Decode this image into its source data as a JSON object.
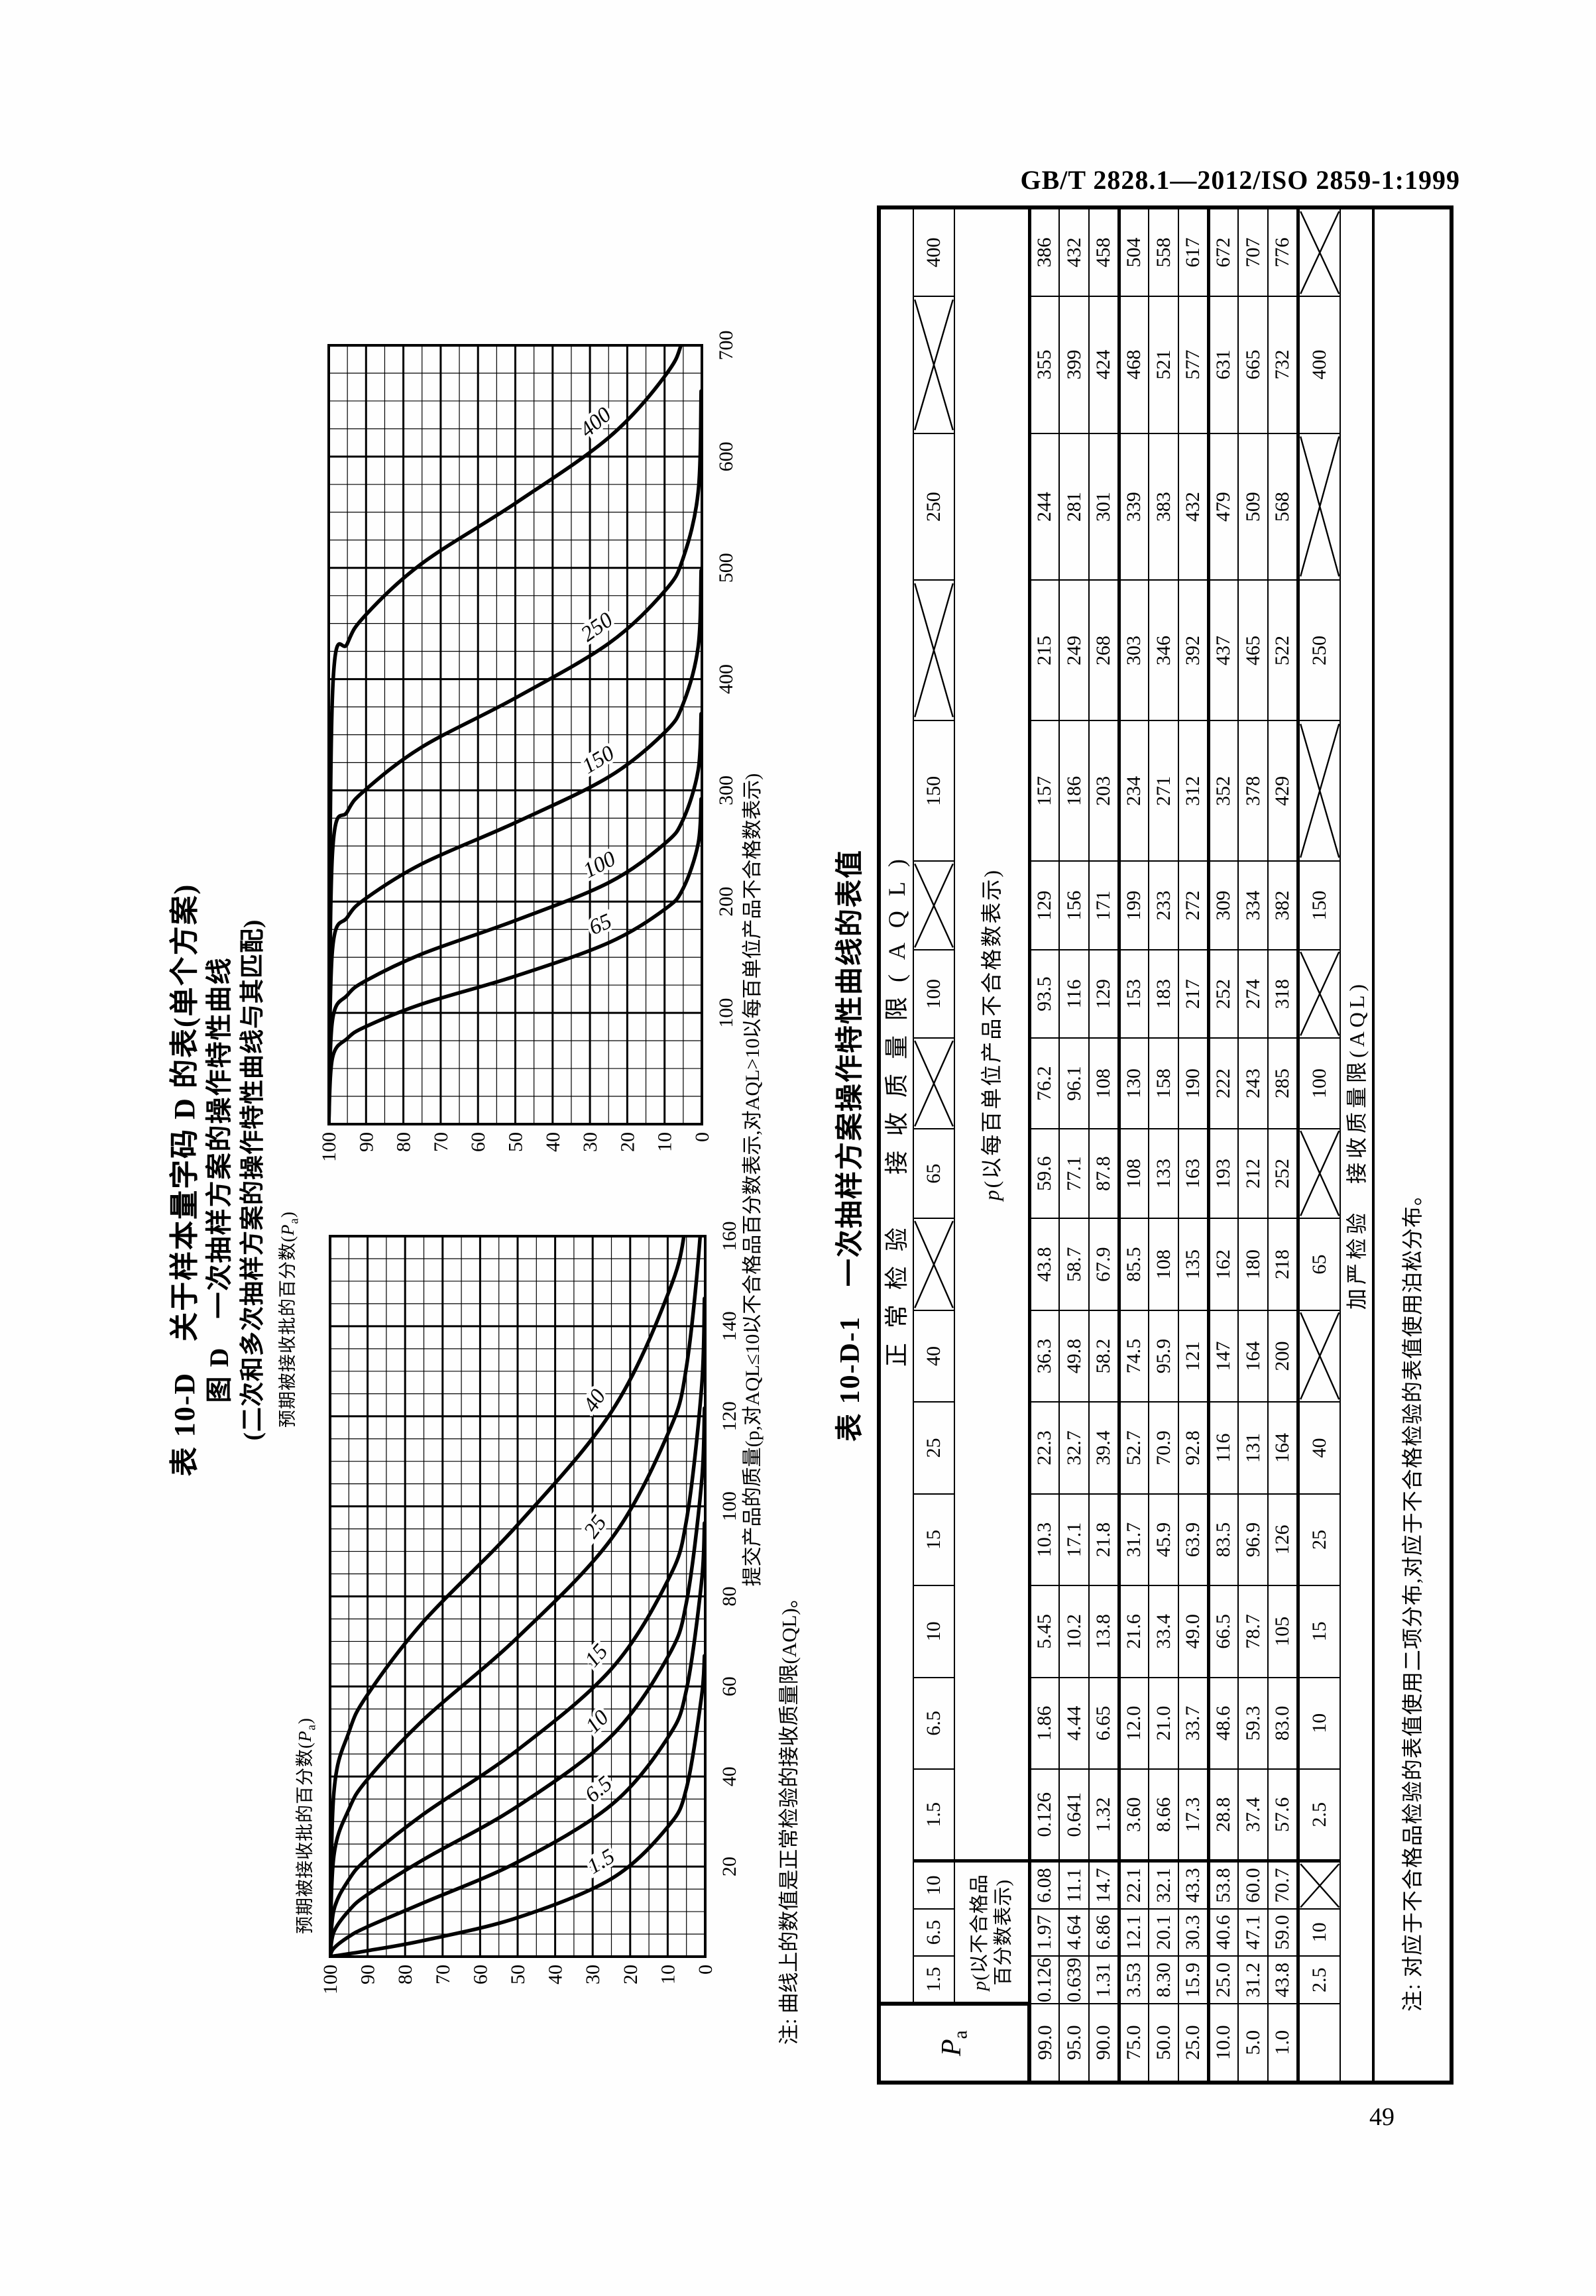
{
  "page": {
    "header": "GB/T 2828.1—2012/ISO 2859-1:1999",
    "page_number": "49"
  },
  "figure": {
    "title1": "表 10-D　关于样本量字码 D 的表(单个方案)",
    "title2": "图 D　一次抽样方案的操作特性曲线",
    "title3": "(二次和多次抽样方案的操作特性曲线与其匹配)",
    "y_axis_label_prefix": "预期被接收批的百分数(",
    "y_axis_symbol": "P",
    "y_axis_sub": "a",
    "y_axis_label_suffix": ")",
    "x_axis_caption": "提交产品的质量(p,对AQL≤10以不合格品百分数表示,对AQL>10以每百单位产品不合格数表示)",
    "note": "注: 曲线上的数值是正常检验的接收质量限(AQL)。"
  },
  "chart_data": [
    {
      "type": "line",
      "title": "OC curves, normal inspection AQL 65-400 (nonconformities per hundred units)",
      "xlabel": "提交产品的质量",
      "ylabel": "预期被接收批的百分数(Pa)",
      "xlim": [
        0,
        700
      ],
      "ylim": [
        0,
        100
      ],
      "xticks": [
        100,
        200,
        300,
        400,
        500,
        600,
        700
      ],
      "yticks": [
        100,
        90,
        80,
        70,
        60,
        50,
        40,
        30,
        20,
        10,
        0
      ],
      "x_minor_step": 25,
      "y_minor_step": 5,
      "grid": true,
      "legend_position": "on-curve",
      "pa_levels": [
        99,
        95,
        90,
        75,
        50,
        25,
        10,
        5,
        1
      ],
      "series": [
        {
          "name": "65",
          "values": [
            59.6,
            77.1,
            87.8,
            108,
            133,
            163,
            193,
            212,
            252
          ]
        },
        {
          "name": "100",
          "values": [
            93.5,
            116,
            129,
            153,
            183,
            217,
            252,
            274,
            318
          ]
        },
        {
          "name": "150",
          "values": [
            157,
            186,
            203,
            234,
            271,
            312,
            352,
            378,
            429
          ]
        },
        {
          "name": "250",
          "values": [
            244,
            281,
            301,
            339,
            383,
            432,
            479,
            509,
            568
          ]
        },
        {
          "name": "400",
          "values": [
            386,
            432,
            458,
            504,
            558,
            617,
            672,
            707,
            776
          ]
        }
      ]
    },
    {
      "type": "line",
      "title": "OC curves, normal inspection AQL 1.5-40",
      "xlabel": "提交产品的质量",
      "ylabel": "预期被接收批的百分数(Pa)",
      "xlim": [
        0,
        160
      ],
      "ylim": [
        0,
        100
      ],
      "xticks": [
        20,
        40,
        60,
        80,
        100,
        120,
        140,
        160
      ],
      "yticks": [
        100,
        90,
        80,
        70,
        60,
        50,
        40,
        30,
        20,
        10,
        0
      ],
      "x_minor_step": 5,
      "y_minor_step": 5,
      "grid": true,
      "legend_position": "on-curve",
      "pa_levels": [
        99,
        95,
        90,
        75,
        50,
        25,
        10,
        5,
        1
      ],
      "series": [
        {
          "name": "1.5",
          "values": [
            0.126,
            0.641,
            1.32,
            3.6,
            8.66,
            17.3,
            28.8,
            37.4,
            57.6
          ]
        },
        {
          "name": "6.5",
          "values": [
            1.86,
            4.44,
            6.65,
            12.0,
            21.0,
            33.7,
            48.6,
            59.3,
            83.0
          ]
        },
        {
          "name": "10",
          "values": [
            5.45,
            10.2,
            13.8,
            21.6,
            33.4,
            49.0,
            66.5,
            78.7,
            105
          ]
        },
        {
          "name": "15",
          "values": [
            10.3,
            17.1,
            21.8,
            31.7,
            45.9,
            63.9,
            83.5,
            96.9,
            126
          ]
        },
        {
          "name": "25",
          "values": [
            22.3,
            32.7,
            39.4,
            52.7,
            70.9,
            92.8,
            116,
            131,
            164
          ]
        },
        {
          "name": "40",
          "values": [
            36.3,
            49.8,
            58.2,
            74.5,
            95.9,
            121,
            147,
            164,
            200
          ]
        }
      ]
    }
  ],
  "table": {
    "title": "表 10-D-1　一次抽样方案操作特性曲线的表值",
    "header_row1": "正常检验　接收质量限(AQL)",
    "pa_symbol": "P",
    "pa_sub": "a",
    "group1_label_line1": "p(以不合格品",
    "group1_label_line2": "百分数表示)",
    "group2_label": "p(以每百单位产品不合格数表示)",
    "aql_g1": [
      "1.5",
      "6.5",
      "10"
    ],
    "aql_g2": [
      "1.5",
      "6.5",
      "10",
      "15",
      "25",
      "40",
      "",
      "65",
      "",
      "100",
      "",
      "150",
      "",
      "250",
      "",
      "400"
    ],
    "rows": [
      {
        "pa": "99.0",
        "g1": [
          "0.126",
          "1.97",
          "6.08"
        ],
        "g2": [
          "0.126",
          "1.86",
          "5.45",
          "10.3",
          "22.3",
          "36.3",
          "43.8",
          "59.6",
          "76.2",
          "93.5",
          "129",
          "157",
          "215",
          "244",
          "355",
          "386"
        ]
      },
      {
        "pa": "95.0",
        "g1": [
          "0.639",
          "4.64",
          "11.1"
        ],
        "g2": [
          "0.641",
          "4.44",
          "10.2",
          "17.1",
          "32.7",
          "49.8",
          "58.7",
          "77.1",
          "96.1",
          "116",
          "156",
          "186",
          "249",
          "281",
          "399",
          "432"
        ]
      },
      {
        "pa": "90.0",
        "g1": [
          "1.31",
          "6.86",
          "14.7"
        ],
        "g2": [
          "1.32",
          "6.65",
          "13.8",
          "21.8",
          "39.4",
          "58.2",
          "67.9",
          "87.8",
          "108",
          "129",
          "171",
          "203",
          "268",
          "301",
          "424",
          "458"
        ]
      },
      {
        "pa": "75.0",
        "g1": [
          "3.53",
          "12.1",
          "22.1"
        ],
        "g2": [
          "3.60",
          "12.0",
          "21.6",
          "31.7",
          "52.7",
          "74.5",
          "85.5",
          "108",
          "130",
          "153",
          "199",
          "234",
          "303",
          "339",
          "468",
          "504"
        ]
      },
      {
        "pa": "50.0",
        "g1": [
          "8.30",
          "20.1",
          "32.1"
        ],
        "g2": [
          "8.66",
          "21.0",
          "33.4",
          "45.9",
          "70.9",
          "95.9",
          "108",
          "133",
          "158",
          "183",
          "233",
          "271",
          "346",
          "383",
          "521",
          "558"
        ]
      },
      {
        "pa": "25.0",
        "g1": [
          "15.9",
          "30.3",
          "43.3"
        ],
        "g2": [
          "17.3",
          "33.7",
          "49.0",
          "63.9",
          "92.8",
          "121",
          "135",
          "163",
          "190",
          "217",
          "272",
          "312",
          "392",
          "432",
          "577",
          "617"
        ]
      },
      {
        "pa": "10.0",
        "g1": [
          "25.0",
          "40.6",
          "53.8"
        ],
        "g2": [
          "28.8",
          "48.6",
          "66.5",
          "83.5",
          "116",
          "147",
          "162",
          "193",
          "222",
          "252",
          "309",
          "352",
          "437",
          "479",
          "631",
          "672"
        ]
      },
      {
        "pa": "5.0",
        "g1": [
          "31.2",
          "47.1",
          "60.0"
        ],
        "g2": [
          "37.4",
          "59.3",
          "78.7",
          "96.9",
          "131",
          "164",
          "180",
          "212",
          "243",
          "274",
          "334",
          "378",
          "465",
          "509",
          "665",
          "707"
        ]
      },
      {
        "pa": "1.0",
        "g1": [
          "43.8",
          "59.0",
          "70.7"
        ],
        "g2": [
          "57.6",
          "83.0",
          "105",
          "126",
          "164",
          "200",
          "218",
          "252",
          "285",
          "318",
          "382",
          "429",
          "522",
          "568",
          "732",
          "776"
        ]
      }
    ],
    "tightened_g1": [
      "2.5",
      "10",
      ""
    ],
    "tightened_g2": [
      "2.5",
      "10",
      "15",
      "25",
      "40",
      "",
      "65",
      "",
      "100",
      "",
      "150",
      "",
      "250",
      "",
      "400",
      ""
    ],
    "tightened_label": "加严检验　接收质量限(AQL)",
    "table_note": "注: 对应于不合格品检验的表值使用二项分布,对应于不合格检验的表值使用泊松分布。"
  }
}
